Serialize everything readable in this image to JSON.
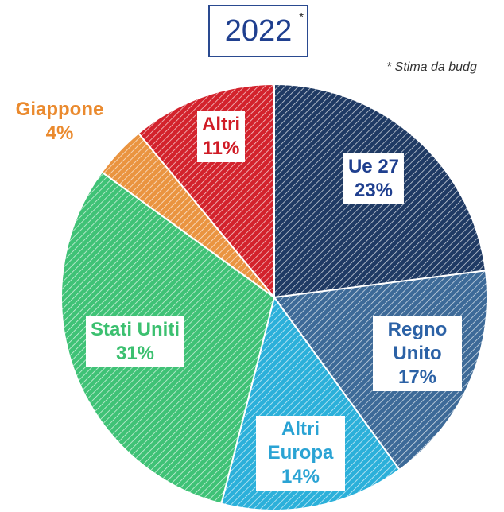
{
  "chart_data": {
    "type": "pie",
    "title": "2022",
    "title_marker": "*",
    "note": "* Stima da budg",
    "categories": [
      "Ue 27",
      "Regno Unito",
      "Altri Europa",
      "Stati Uniti",
      "Giappone",
      "Altri"
    ],
    "values": [
      23,
      17,
      14,
      31,
      4,
      11
    ],
    "value_labels": [
      "23%",
      "17%",
      "14%",
      "31%",
      "4%",
      "11%"
    ],
    "colors": [
      "#1f3a64",
      "#3d6a98",
      "#2bb0da",
      "#3fc276",
      "#ea9440",
      "#d3222c"
    ],
    "label_colors": [
      "#1f3f8f",
      "#2c62a6",
      "#2aa3d4",
      "#3cc070",
      "#ea8a2e",
      "#d01c26"
    ]
  }
}
